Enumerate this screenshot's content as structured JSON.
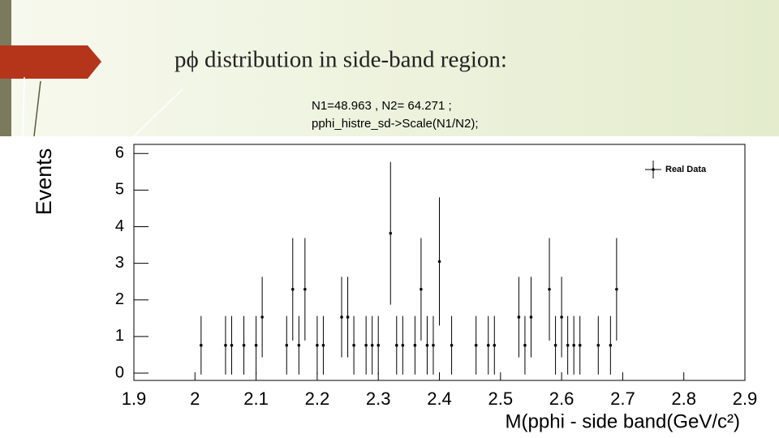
{
  "slide": {
    "title": "pϕ distribution in side-band region:",
    "code_lines": [
      "N1=48.963 , N2= 64.271 ;",
      "pphi_histre_sd->Scale(N1/N2);"
    ]
  },
  "chart_data": {
    "type": "errorbar",
    "xlabel": "M(pphi - side band(GeV/c²)",
    "ylabel": "Events",
    "xlim": [
      1.9,
      2.9
    ],
    "xticks": [
      1.9,
      2,
      2.1,
      2.2,
      2.3,
      2.4,
      2.5,
      2.6,
      2.7,
      2.8,
      2.9
    ],
    "ylim": [
      -0.2,
      6.25
    ],
    "yticks": [
      0,
      1,
      2,
      3,
      4,
      5,
      6
    ],
    "legend": "upper-right",
    "x": [
      2.01,
      2.05,
      2.06,
      2.08,
      2.1,
      2.11,
      2.15,
      2.16,
      2.17,
      2.18,
      2.2,
      2.21,
      2.24,
      2.25,
      2.26,
      2.28,
      2.29,
      2.3,
      2.32,
      2.33,
      2.34,
      2.36,
      2.37,
      2.38,
      2.39,
      2.4,
      2.42,
      2.46,
      2.48,
      2.49,
      2.53,
      2.54,
      2.55,
      2.58,
      2.59,
      2.6,
      2.61,
      2.62,
      2.63,
      2.66,
      2.68,
      2.69
    ],
    "series": [
      {
        "name": "Real Data",
        "color": "#000000",
        "values": [
          0.76,
          0.76,
          0.76,
          0.76,
          0.76,
          1.53,
          0.76,
          2.29,
          0.76,
          2.29,
          0.76,
          0.76,
          1.53,
          1.53,
          0.76,
          0.76,
          0.76,
          0.76,
          3.82,
          0.76,
          0.76,
          0.76,
          2.29,
          0.76,
          0.76,
          3.05,
          0.76,
          0.76,
          0.76,
          0.76,
          1.53,
          0.76,
          1.53,
          2.29,
          0.76,
          1.53,
          0.76,
          0.76,
          0.76,
          0.76,
          0.76,
          2.29
        ],
        "errors": [
          0.8,
          0.8,
          0.8,
          0.8,
          0.8,
          1.1,
          0.8,
          1.4,
          0.8,
          1.4,
          0.8,
          0.8,
          1.1,
          1.1,
          0.8,
          0.8,
          0.8,
          0.8,
          1.95,
          0.8,
          0.8,
          0.8,
          1.4,
          0.8,
          0.8,
          1.75,
          0.8,
          0.8,
          0.8,
          0.8,
          1.1,
          0.8,
          1.1,
          1.4,
          0.8,
          1.1,
          0.8,
          0.8,
          0.8,
          0.8,
          0.8,
          1.4
        ]
      }
    ]
  }
}
